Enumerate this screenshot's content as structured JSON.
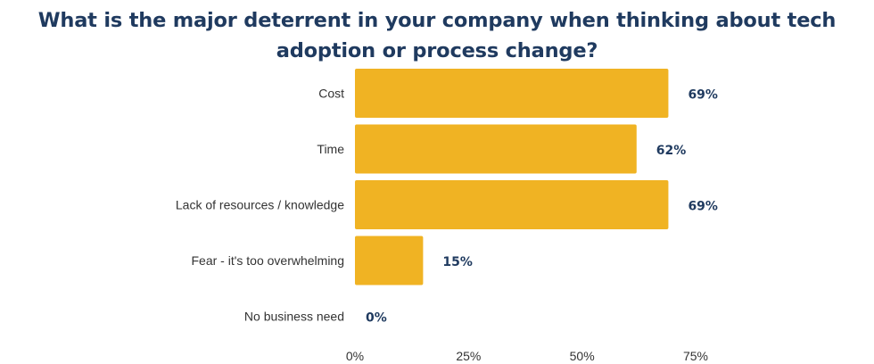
{
  "chart_data": {
    "type": "bar",
    "orientation": "horizontal",
    "title_lines": [
      "What is the major deterrent in your company when thinking about tech",
      "adoption or process change?"
    ],
    "categories": [
      "Cost",
      "Time",
      "Lack of resources / knowledge",
      "Fear - it's too overwhelming",
      "No business need"
    ],
    "values": [
      69,
      62,
      69,
      15,
      0
    ],
    "value_labels": [
      "69%",
      "62%",
      "69%",
      "15%",
      "0%"
    ],
    "xlim": [
      0,
      75
    ],
    "ticks": [
      0,
      25,
      50,
      75
    ],
    "tick_labels": [
      "0%",
      "25%",
      "50%",
      "75%"
    ],
    "grid": false,
    "legend": "none",
    "bar_color": "#f0b323",
    "title_color": "#1f3a5f"
  }
}
